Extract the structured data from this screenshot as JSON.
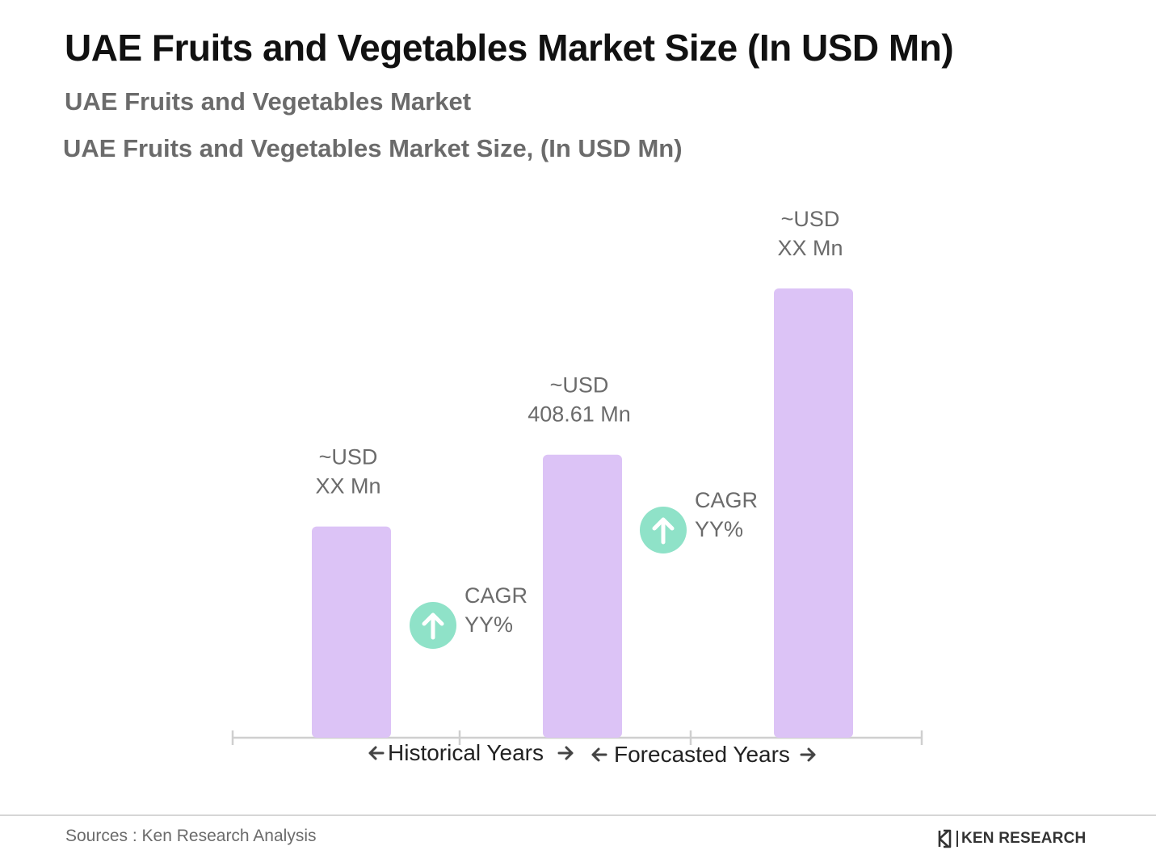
{
  "title": "UAE Fruits and Vegetables Market Size (In USD Mn)",
  "subtitle": "UAE Fruits and Vegetables Market",
  "caption": "UAE Fruits and Vegetables Market Size, (In USD Mn)",
  "footer": {
    "sources": "Sources : Ken Research Analysis",
    "brand": "KEN RESEARCH"
  },
  "colors": {
    "bar": "#dcc3f6",
    "cagr_circle": "#8fe2c8",
    "axis": "#cfcfcf",
    "label": "#6b6b6b"
  },
  "icons": {
    "cagr": "arrow-up-icon",
    "period_left": "arrow-left-icon",
    "period_right": "arrow-right-icon",
    "brand": "ken-logo-icon"
  },
  "chart_data": {
    "type": "bar",
    "categories": [
      "",
      "",
      ""
    ],
    "values": [
      null,
      408.61,
      null
    ],
    "relative_heights": [
      0.47,
      0.63,
      1.0
    ],
    "bar_labels": [
      [
        "~USD",
        "XX Mn"
      ],
      [
        "~USD",
        "408.61 Mn"
      ],
      [
        "~USD",
        "XX Mn"
      ]
    ],
    "annotations": [
      {
        "between": [
          0,
          1
        ],
        "lines": [
          "CAGR",
          "YY%"
        ]
      },
      {
        "between": [
          1,
          2
        ],
        "lines": [
          "CAGR",
          "YY%"
        ]
      }
    ],
    "periods": [
      {
        "label": "Historical Years",
        "from": 0,
        "to": 1
      },
      {
        "label": "Forecasted Years",
        "from": 1,
        "to": 2
      }
    ],
    "title": "UAE Fruits and Vegetables Market Size, (In USD Mn)",
    "xlabel": "",
    "ylabel": "",
    "grid": false,
    "legend": "none"
  }
}
